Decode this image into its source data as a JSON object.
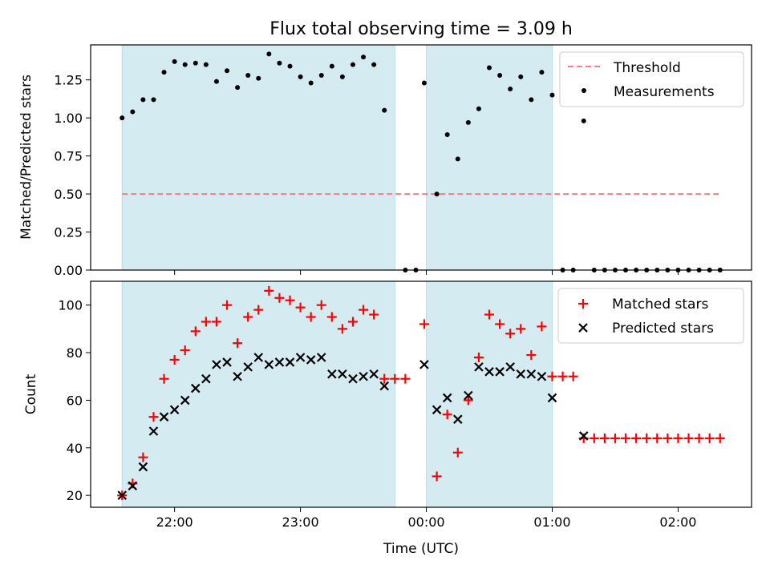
{
  "title": "Flux total observing time = 3.09 h",
  "colors": {
    "shade": "#d4ebf1",
    "threshold": "#f08080",
    "matched": "#ff0000",
    "predicted": "#000000",
    "measurement": "#000000"
  },
  "chart_data": [
    {
      "type": "scatter",
      "ylabel": "Matched/Predicted stars",
      "ylim": [
        0,
        1.48
      ],
      "yticks": [
        0,
        0.25,
        0.5,
        0.75,
        1.0,
        1.25
      ],
      "ytick_labels": [
        "0.00",
        "0.25",
        "0.50",
        "0.75",
        "1.00",
        "1.25"
      ],
      "legend_position": "top-right",
      "shaded_regions": [
        [
          "21:35",
          "23:45"
        ],
        [
          "00:00",
          "01:00"
        ]
      ],
      "threshold_line": {
        "name": "Threshold",
        "y": 0.5,
        "x_range": [
          "21:35",
          "02:20"
        ],
        "style": "dashed"
      },
      "series": [
        {
          "name": "Measurements",
          "marker": "dot",
          "points": [
            [
              "21:35",
              1.0
            ],
            [
              "21:40",
              1.04
            ],
            [
              "21:45",
              1.12
            ],
            [
              "21:50",
              1.12
            ],
            [
              "21:55",
              1.3
            ],
            [
              "22:00",
              1.37
            ],
            [
              "22:05",
              1.35
            ],
            [
              "22:10",
              1.36
            ],
            [
              "22:15",
              1.35
            ],
            [
              "22:20",
              1.24
            ],
            [
              "22:25",
              1.31
            ],
            [
              "22:30",
              1.2
            ],
            [
              "22:35",
              1.28
            ],
            [
              "22:40",
              1.26
            ],
            [
              "22:45",
              1.42
            ],
            [
              "22:50",
              1.36
            ],
            [
              "22:55",
              1.34
            ],
            [
              "23:00",
              1.27
            ],
            [
              "23:05",
              1.23
            ],
            [
              "23:10",
              1.28
            ],
            [
              "23:15",
              1.34
            ],
            [
              "23:20",
              1.27
            ],
            [
              "23:25",
              1.35
            ],
            [
              "23:30",
              1.4
            ],
            [
              "23:35",
              1.35
            ],
            [
              "23:40",
              1.05
            ],
            [
              "23:50",
              0.0
            ],
            [
              "23:55",
              0.0
            ],
            [
              "23:59",
              1.23
            ],
            [
              "00:05",
              0.5
            ],
            [
              "00:10",
              0.89
            ],
            [
              "00:15",
              0.73
            ],
            [
              "00:20",
              0.97
            ],
            [
              "00:25",
              1.06
            ],
            [
              "00:30",
              1.33
            ],
            [
              "00:35",
              1.28
            ],
            [
              "00:40",
              1.19
            ],
            [
              "00:45",
              1.27
            ],
            [
              "00:50",
              1.12
            ],
            [
              "00:55",
              1.3
            ],
            [
              "01:00",
              1.15
            ],
            [
              "01:05",
              0.0
            ],
            [
              "01:10",
              0.0
            ],
            [
              "01:15",
              0.98
            ],
            [
              "01:20",
              0.0
            ],
            [
              "01:25",
              0.0
            ],
            [
              "01:30",
              0.0
            ],
            [
              "01:35",
              0.0
            ],
            [
              "01:40",
              0.0
            ],
            [
              "01:45",
              0.0
            ],
            [
              "01:50",
              0.0
            ],
            [
              "01:55",
              0.0
            ],
            [
              "02:00",
              0.0
            ],
            [
              "02:05",
              0.0
            ],
            [
              "02:10",
              0.0
            ],
            [
              "02:15",
              0.0
            ],
            [
              "02:20",
              0.0
            ]
          ]
        }
      ]
    },
    {
      "type": "scatter",
      "xlabel": "Time (UTC)",
      "ylabel": "Count",
      "ylim": [
        15,
        110
      ],
      "yticks": [
        20,
        40,
        60,
        80,
        100
      ],
      "ytick_labels": [
        "20",
        "40",
        "60",
        "80",
        "100"
      ],
      "xlim": [
        "21:20",
        "02:35"
      ],
      "xticks": [
        "22:00",
        "23:00",
        "00:00",
        "01:00",
        "02:00"
      ],
      "legend_position": "top-right",
      "shaded_regions": [
        [
          "21:35",
          "23:45"
        ],
        [
          "00:00",
          "01:00"
        ]
      ],
      "series": [
        {
          "name": "Matched stars",
          "marker": "plus",
          "points": [
            [
              "21:35",
              20
            ],
            [
              "21:40",
              25
            ],
            [
              "21:45",
              36
            ],
            [
              "21:50",
              53
            ],
            [
              "21:55",
              69
            ],
            [
              "22:00",
              77
            ],
            [
              "22:05",
              81
            ],
            [
              "22:10",
              89
            ],
            [
              "22:15",
              93
            ],
            [
              "22:20",
              93
            ],
            [
              "22:25",
              100
            ],
            [
              "22:30",
              84
            ],
            [
              "22:35",
              95
            ],
            [
              "22:40",
              98
            ],
            [
              "22:45",
              106
            ],
            [
              "22:50",
              103
            ],
            [
              "22:55",
              102
            ],
            [
              "23:00",
              99
            ],
            [
              "23:05",
              95
            ],
            [
              "23:10",
              100
            ],
            [
              "23:15",
              95
            ],
            [
              "23:20",
              90
            ],
            [
              "23:25",
              93
            ],
            [
              "23:30",
              98
            ],
            [
              "23:35",
              96
            ],
            [
              "23:40",
              69
            ],
            [
              "23:45",
              69
            ],
            [
              "23:50",
              69
            ],
            [
              "23:59",
              92
            ],
            [
              "00:05",
              28
            ],
            [
              "00:10",
              54
            ],
            [
              "00:15",
              38
            ],
            [
              "00:20",
              60
            ],
            [
              "00:25",
              78
            ],
            [
              "00:30",
              96
            ],
            [
              "00:35",
              92
            ],
            [
              "00:40",
              88
            ],
            [
              "00:45",
              90
            ],
            [
              "00:50",
              79
            ],
            [
              "00:55",
              91
            ],
            [
              "01:00",
              70
            ],
            [
              "01:05",
              70
            ],
            [
              "01:10",
              70
            ],
            [
              "01:15",
              44
            ],
            [
              "01:20",
              44
            ],
            [
              "01:25",
              44
            ],
            [
              "01:30",
              44
            ],
            [
              "01:35",
              44
            ],
            [
              "01:40",
              44
            ],
            [
              "01:45",
              44
            ],
            [
              "01:50",
              44
            ],
            [
              "01:55",
              44
            ],
            [
              "02:00",
              44
            ],
            [
              "02:05",
              44
            ],
            [
              "02:10",
              44
            ],
            [
              "02:15",
              44
            ],
            [
              "02:20",
              44
            ]
          ]
        },
        {
          "name": "Predicted stars",
          "marker": "x",
          "points": [
            [
              "21:35",
              20
            ],
            [
              "21:40",
              24
            ],
            [
              "21:45",
              32
            ],
            [
              "21:50",
              47
            ],
            [
              "21:55",
              53
            ],
            [
              "22:00",
              56
            ],
            [
              "22:05",
              60
            ],
            [
              "22:10",
              65
            ],
            [
              "22:15",
              69
            ],
            [
              "22:20",
              75
            ],
            [
              "22:25",
              76
            ],
            [
              "22:30",
              70
            ],
            [
              "22:35",
              74
            ],
            [
              "22:40",
              78
            ],
            [
              "22:45",
              75
            ],
            [
              "22:50",
              76
            ],
            [
              "22:55",
              76
            ],
            [
              "23:00",
              78
            ],
            [
              "23:05",
              77
            ],
            [
              "23:10",
              78
            ],
            [
              "23:15",
              71
            ],
            [
              "23:20",
              71
            ],
            [
              "23:25",
              69
            ],
            [
              "23:30",
              70
            ],
            [
              "23:35",
              71
            ],
            [
              "23:40",
              66
            ],
            [
              "23:59",
              75
            ],
            [
              "00:05",
              56
            ],
            [
              "00:10",
              61
            ],
            [
              "00:15",
              52
            ],
            [
              "00:20",
              62
            ],
            [
              "00:25",
              74
            ],
            [
              "00:30",
              72
            ],
            [
              "00:35",
              72
            ],
            [
              "00:40",
              74
            ],
            [
              "00:45",
              71
            ],
            [
              "00:50",
              71
            ],
            [
              "00:55",
              70
            ],
            [
              "01:00",
              61
            ],
            [
              "01:15",
              45
            ]
          ]
        }
      ]
    }
  ]
}
